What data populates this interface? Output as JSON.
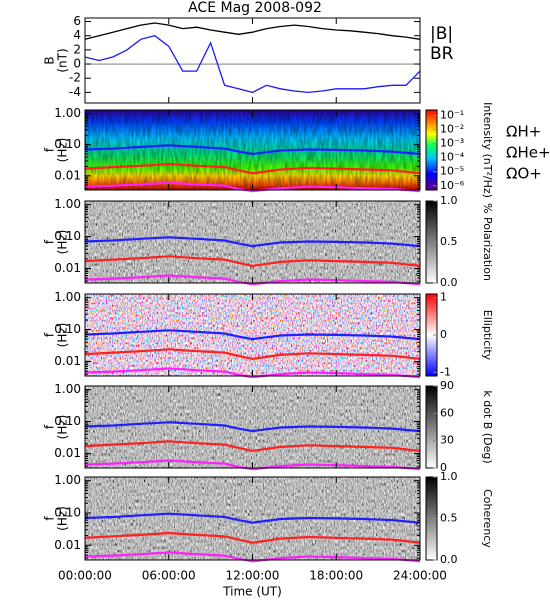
{
  "chart_data": [
    {
      "type": "line",
      "title": "ACE Mag 2008-092",
      "ylabel": [
        "B",
        "(nT)"
      ],
      "ylim": [
        -5.5,
        6.5
      ],
      "yticks": [
        -4,
        -2,
        0,
        2,
        4,
        6
      ],
      "x": [
        0,
        1,
        2,
        3,
        4,
        5,
        6,
        7,
        8,
        9,
        10,
        11,
        12,
        13,
        14,
        15,
        16,
        17,
        18,
        19,
        20,
        21,
        22,
        23,
        24
      ],
      "series": [
        {
          "name": "|B|",
          "color": "#000000",
          "values": [
            3.5,
            4,
            4.5,
            5,
            5.5,
            5.8,
            5.5,
            5,
            5.2,
            4.8,
            4.5,
            4.2,
            4.5,
            5,
            5.3,
            5.5,
            5.3,
            5,
            4.8,
            4.7,
            4.5,
            4.3,
            4,
            3.8,
            3.5
          ]
        },
        {
          "name": "BR",
          "color": "#1a1aff",
          "values": [
            1,
            0.5,
            1,
            2,
            3.5,
            4,
            2.5,
            -1,
            -1,
            3,
            -3,
            -3.5,
            -4,
            -3,
            -3.5,
            -3.8,
            -4,
            -3.8,
            -3.5,
            -3.5,
            -3.5,
            -3.2,
            -3,
            -3,
            -1
          ]
        }
      ]
    },
    {
      "type": "spectrogram",
      "ylabel": [
        "f",
        "(Hz)"
      ],
      "log": true,
      "ylim": [
        0.0035,
        1.3
      ],
      "yticks": [
        0.01,
        {
          "value": 0.1,
          "label": "0.10"
        },
        {
          "value": 1,
          "label": "1.00"
        }
      ],
      "colorbar": {
        "label": "Intensity (nT²/Hz)",
        "log": true,
        "lim": [
          5e-07,
          0.25
        ],
        "colormap": "rainbow",
        "ticks": [
          {
            "value": 0.1,
            "label": "10⁻¹"
          },
          {
            "value": 0.01,
            "label": "10⁻²"
          },
          {
            "value": 0.001,
            "label": "10⁻³"
          },
          {
            "value": 0.0001,
            "label": "10⁻⁴"
          },
          {
            "value": 1e-05,
            "label": "10⁻⁵"
          },
          {
            "value": 1e-06,
            "label": "10⁻⁶"
          }
        ]
      },
      "x": [
        0,
        2,
        4,
        6,
        8,
        10,
        11,
        12,
        14,
        16,
        18,
        20,
        22,
        24
      ],
      "series": [
        {
          "name": "ΩH+",
          "color": "#2020ff",
          "values": [
            0.07,
            0.075,
            0.085,
            0.095,
            0.085,
            0.075,
            0.06,
            0.05,
            0.065,
            0.07,
            0.068,
            0.065,
            0.06,
            0.05
          ]
        },
        {
          "name": "ΩHe+",
          "color": "#ff2020",
          "values": [
            0.017,
            0.019,
            0.021,
            0.024,
            0.021,
            0.019,
            0.015,
            0.012,
            0.016,
            0.018,
            0.017,
            0.016,
            0.015,
            0.012
          ]
        },
        {
          "name": "ΩO+",
          "color": "#ff20ff",
          "values": [
            0.0045,
            0.0048,
            0.0053,
            0.006,
            0.0053,
            0.0048,
            0.0038,
            0.0032,
            0.004,
            0.0045,
            0.0043,
            0.004,
            0.0038,
            0.0032
          ]
        }
      ]
    },
    {
      "type": "spectrogram",
      "ylabel": [
        "f",
        "(Hz)"
      ],
      "log": true,
      "ylim": [
        0.0035,
        1.3
      ],
      "yticks": [
        0.01,
        {
          "value": 0.1,
          "label": "0.10"
        },
        {
          "value": 1,
          "label": "1.00"
        }
      ],
      "colorbar": {
        "label": "% Polarization",
        "lim": [
          0,
          1
        ],
        "colormap": "gray",
        "ticks": [
          {
            "value": 0,
            "label": "0.0"
          },
          0.5,
          {
            "value": 1,
            "label": "1.0"
          }
        ]
      }
    },
    {
      "type": "spectrogram",
      "ylabel": [
        "f",
        "(Hz)"
      ],
      "log": true,
      "ylim": [
        0.0035,
        1.3
      ],
      "yticks": [
        0.01,
        {
          "value": 0.1,
          "label": "0.10"
        },
        {
          "value": 1,
          "label": "1.00"
        }
      ],
      "colorbar": {
        "label": "Ellipticity",
        "lim": [
          -1.1,
          1.1
        ],
        "colormap": "bwr",
        "ticks": [
          -1,
          0,
          1
        ]
      }
    },
    {
      "type": "spectrogram",
      "ylabel": [
        "f",
        "(Hz)"
      ],
      "log": true,
      "ylim": [
        0.0035,
        1.3
      ],
      "yticks": [
        0.01,
        {
          "value": 0.1,
          "label": "0.10"
        },
        {
          "value": 1,
          "label": "1.00"
        }
      ],
      "colorbar": {
        "label": "k dot B (Deg)",
        "lim": [
          0,
          90
        ],
        "colormap": "gray",
        "ticks": [
          0,
          30,
          60,
          90
        ]
      }
    },
    {
      "type": "spectrogram",
      "ylabel": [
        "f",
        "(Hz)"
      ],
      "log": true,
      "ylim": [
        0.0035,
        1.3
      ],
      "yticks": [
        0.01,
        {
          "value": 0.1,
          "label": "0.10"
        },
        {
          "value": 1,
          "label": "1.00"
        }
      ],
      "colorbar": {
        "label": "Coherency",
        "lim": [
          0,
          1
        ],
        "colormap": "gray",
        "ticks": [
          {
            "value": 0,
            "label": "0.0"
          },
          0.5,
          {
            "value": 1,
            "label": "1.0"
          }
        ]
      },
      "xlabel": "Time (UT)",
      "xlim": [
        0,
        24
      ],
      "xticks": [
        {
          "value": 0,
          "label": "00:00:00"
        },
        {
          "value": 6,
          "label": "06:00:00"
        },
        {
          "value": 12,
          "label": "12:00:00"
        },
        {
          "value": 18,
          "label": "18:00:00"
        },
        {
          "value": 24,
          "label": "24:00:00"
        }
      ]
    }
  ]
}
